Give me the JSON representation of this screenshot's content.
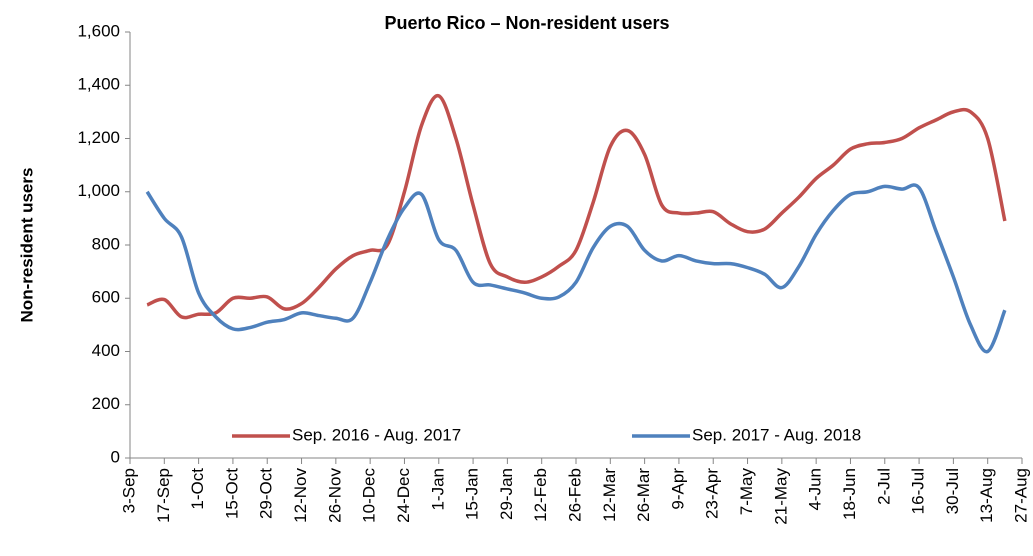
{
  "chart_data": {
    "type": "line",
    "title": "Puerto Rico – Non-resident users",
    "y_label": "Non-resident users",
    "categories": [
      "3-Sep",
      null,
      "17-Sep",
      null,
      "1-Oct",
      null,
      "15-Oct",
      null,
      "29-Oct",
      null,
      "12-Nov",
      null,
      "26-Nov",
      null,
      "10-Dec",
      null,
      "24-Dec",
      null,
      "1-Jan",
      null,
      "15-Jan",
      null,
      "29-Jan",
      null,
      "12-Feb",
      null,
      "26-Feb",
      null,
      "12-Mar",
      null,
      "26-Mar",
      null,
      "9-Apr",
      null,
      "23-Apr",
      null,
      "7-May",
      null,
      "21-May",
      null,
      "4-Jun",
      null,
      "18-Jun",
      null,
      "2-Jul",
      null,
      "16-Jul",
      null,
      "30-Jul",
      null,
      "13-Aug",
      null,
      "27-Aug"
    ],
    "series": [
      {
        "name": "Sep. 2016 - Aug. 2017",
        "color": "#c0504d",
        "values": [
          null,
          575,
          595,
          530,
          540,
          545,
          600,
          600,
          605,
          560,
          580,
          640,
          710,
          760,
          780,
          800,
          1000,
          1250,
          1360,
          1200,
          950,
          730,
          680,
          660,
          680,
          720,
          780,
          960,
          1170,
          1230,
          1140,
          950,
          920,
          920,
          925,
          880,
          850,
          860,
          920,
          980,
          1050,
          1100,
          1160,
          1180,
          1185,
          1200,
          1240,
          1270,
          1300,
          1300,
          1200,
          890,
          null
        ]
      },
      {
        "name": "Sep. 2017 - Aug. 2018",
        "color": "#4f81bd",
        "values": [
          null,
          1000,
          900,
          830,
          620,
          530,
          485,
          490,
          510,
          520,
          545,
          535,
          525,
          525,
          660,
          820,
          940,
          990,
          820,
          780,
          660,
          650,
          635,
          620,
          600,
          605,
          660,
          790,
          870,
          870,
          780,
          740,
          760,
          740,
          730,
          730,
          715,
          690,
          640,
          720,
          840,
          930,
          990,
          1000,
          1020,
          1010,
          1015,
          850,
          680,
          500,
          400,
          555,
          null
        ]
      }
    ],
    "ylim": [
      0,
      1600
    ],
    "yticks": [
      0,
      {
        "value": 200,
        "label": "200"
      },
      400,
      600,
      800,
      {
        "value": 1000,
        "label": "1,000"
      },
      {
        "value": 1200,
        "label": "1,200"
      },
      {
        "value": 1400,
        "label": "1,400"
      },
      {
        "value": 1600,
        "label": "1,600"
      }
    ],
    "grid": false,
    "legend": "bottom"
  }
}
